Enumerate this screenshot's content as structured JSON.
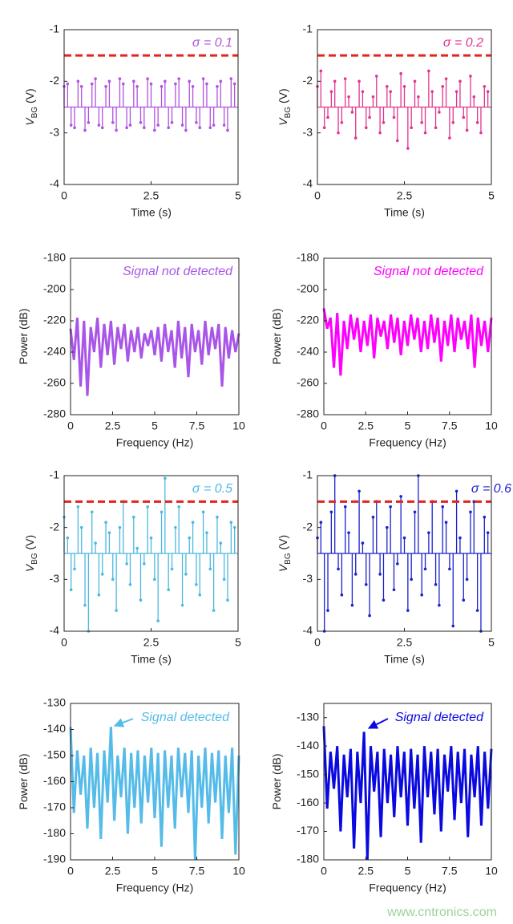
{
  "chart_data": [
    {
      "type": "stem",
      "color": "#b052e0",
      "xlabel": "Time (s)",
      "ylabel": [
        "V",
        "BG",
        " (V)"
      ],
      "annotation": "σ = 0.1",
      "threshold": -1.5,
      "threshold_color": "#e0261f",
      "xlim": [
        0,
        5
      ],
      "xticks": [
        0,
        2.5,
        5
      ],
      "ylim": [
        -4,
        -1
      ],
      "yticks": [
        -1,
        -2,
        -3,
        -4
      ],
      "baseline": -2.5,
      "x": [
        0,
        0.1,
        0.2,
        0.3,
        0.4,
        0.5,
        0.6,
        0.7,
        0.8,
        0.9,
        1,
        1.1,
        1.2,
        1.3,
        1.4,
        1.5,
        1.6,
        1.7,
        1.8,
        1.9,
        2,
        2.1,
        2.2,
        2.3,
        2.4,
        2.5,
        2.6,
        2.7,
        2.8,
        2.9,
        3,
        3.1,
        3.2,
        3.3,
        3.4,
        3.5,
        3.6,
        3.7,
        3.8,
        3.9,
        4,
        4.1,
        4.2,
        4.3,
        4.4,
        4.5,
        4.6,
        4.7,
        4.8,
        4.9
      ],
      "values": [
        -2.1,
        -2.05,
        -2.85,
        -2.9,
        -2.0,
        -2.1,
        -2.95,
        -2.8,
        -2.05,
        -1.95,
        -2.85,
        -2.9,
        -2.1,
        -2.0,
        -2.8,
        -2.95,
        -1.95,
        -2.05,
        -2.9,
        -2.85,
        -2.0,
        -2.1,
        -2.8,
        -2.9,
        -1.95,
        -2.05,
        -2.95,
        -2.85,
        -2.1,
        -2.0,
        -2.9,
        -2.8,
        -2.05,
        -1.95,
        -2.85,
        -2.95,
        -2.0,
        -2.1,
        -2.8,
        -2.9,
        -1.95,
        -2.05,
        -2.9,
        -2.85,
        -2.1,
        -2.0,
        -2.85,
        -2.95,
        -1.95,
        -2.05
      ]
    },
    {
      "type": "stem",
      "color": "#e0358f",
      "xlabel": "Time (s)",
      "ylabel": [
        "V",
        "BG",
        " (V)"
      ],
      "annotation": "σ = 0.2",
      "threshold": -1.5,
      "threshold_color": "#e0261f",
      "xlim": [
        0,
        5
      ],
      "xticks": [
        0,
        2.5,
        5
      ],
      "ylim": [
        -4,
        -1
      ],
      "yticks": [
        -1,
        -2,
        -3,
        -4
      ],
      "baseline": -2.5,
      "x": [
        0,
        0.1,
        0.2,
        0.3,
        0.4,
        0.5,
        0.6,
        0.7,
        0.8,
        0.9,
        1,
        1.1,
        1.2,
        1.3,
        1.4,
        1.5,
        1.6,
        1.7,
        1.8,
        1.9,
        2,
        2.1,
        2.2,
        2.3,
        2.4,
        2.5,
        2.6,
        2.7,
        2.8,
        2.9,
        3,
        3.1,
        3.2,
        3.3,
        3.4,
        3.5,
        3.6,
        3.7,
        3.8,
        3.9,
        4,
        4.1,
        4.2,
        4.3,
        4.4,
        4.5,
        4.6,
        4.7,
        4.8,
        4.9
      ],
      "values": [
        -2.1,
        -1.8,
        -2.9,
        -2.7,
        -2.2,
        -2.0,
        -3.0,
        -2.8,
        -1.95,
        -2.3,
        -2.6,
        -3.1,
        -2.0,
        -2.2,
        -2.9,
        -2.7,
        -2.3,
        -1.9,
        -3.0,
        -2.8,
        -2.1,
        -2.2,
        -2.7,
        -3.15,
        -1.85,
        -2.1,
        -3.3,
        -2.9,
        -2.0,
        -2.3,
        -2.8,
        -3.0,
        -1.8,
        -2.2,
        -2.9,
        -2.6,
        -2.1,
        -1.95,
        -3.1,
        -2.8,
        -2.2,
        -2.0,
        -2.7,
        -2.95,
        -1.9,
        -2.3,
        -2.8,
        -3.0,
        -2.1,
        -2.2
      ]
    },
    {
      "type": "line",
      "color": "#a855e8",
      "xlabel": "Frequency (Hz)",
      "ylabel": [
        "Power (dB)"
      ],
      "annotation": "Signal not detected",
      "xlim": [
        0,
        10
      ],
      "xticks": [
        0,
        2.5,
        5,
        7.5,
        10
      ],
      "ylim": [
        -280,
        -180
      ],
      "yticks": [
        -180,
        -200,
        -220,
        -240,
        -260,
        -280
      ],
      "x": [
        0,
        0.2,
        0.4,
        0.6,
        0.8,
        1,
        1.2,
        1.4,
        1.6,
        1.8,
        2,
        2.2,
        2.4,
        2.6,
        2.8,
        3,
        3.2,
        3.4,
        3.6,
        3.8,
        4,
        4.2,
        4.4,
        4.6,
        4.8,
        5,
        5.2,
        5.4,
        5.6,
        5.8,
        6,
        6.2,
        6.4,
        6.6,
        6.8,
        7,
        7.2,
        7.4,
        7.6,
        7.8,
        8,
        8.2,
        8.4,
        8.6,
        8.8,
        9,
        9.2,
        9.4,
        9.6,
        9.8,
        10
      ],
      "values": [
        -225,
        -245,
        -218,
        -262,
        -220,
        -268,
        -224,
        -240,
        -218,
        -250,
        -222,
        -242,
        -220,
        -248,
        -224,
        -238,
        -222,
        -246,
        -226,
        -240,
        -224,
        -244,
        -228,
        -236,
        -226,
        -242,
        -224,
        -246,
        -222,
        -240,
        -226,
        -250,
        -220,
        -244,
        -224,
        -256,
        -222,
        -240,
        -226,
        -248,
        -220,
        -242,
        -224,
        -238,
        -222,
        -262,
        -224,
        -244,
        -226,
        -240,
        -228
      ]
    },
    {
      "type": "line",
      "color": "#ff00ff",
      "xlabel": "Frequency (Hz)",
      "ylabel": [
        "Power (dB)"
      ],
      "annotation": "Signal not detected",
      "xlim": [
        0,
        10
      ],
      "xticks": [
        0,
        2.5,
        5,
        7.5,
        10
      ],
      "ylim": [
        -280,
        -180
      ],
      "yticks": [
        -180,
        -200,
        -220,
        -240,
        -260,
        -280
      ],
      "x": [
        0,
        0.2,
        0.4,
        0.6,
        0.8,
        1,
        1.2,
        1.4,
        1.6,
        1.8,
        2,
        2.2,
        2.4,
        2.6,
        2.8,
        3,
        3.2,
        3.4,
        3.6,
        3.8,
        4,
        4.2,
        4.4,
        4.6,
        4.8,
        5,
        5.2,
        5.4,
        5.6,
        5.8,
        6,
        6.2,
        6.4,
        6.6,
        6.8,
        7,
        7.2,
        7.4,
        7.6,
        7.8,
        8,
        8.2,
        8.4,
        8.6,
        8.8,
        9,
        9.2,
        9.4,
        9.6,
        9.8,
        10
      ],
      "values": [
        -212,
        -225,
        -218,
        -250,
        -215,
        -255,
        -220,
        -238,
        -216,
        -232,
        -218,
        -240,
        -220,
        -236,
        -216,
        -244,
        -218,
        -230,
        -220,
        -238,
        -216,
        -234,
        -218,
        -242,
        -220,
        -236,
        -216,
        -232,
        -218,
        -240,
        -220,
        -238,
        -216,
        -234,
        -218,
        -246,
        -220,
        -236,
        -216,
        -240,
        -218,
        -232,
        -220,
        -238,
        -216,
        -250,
        -218,
        -236,
        -220,
        -240,
        -218
      ]
    },
    {
      "type": "stem",
      "color": "#4cb8e0",
      "xlabel": "Time (s)",
      "ylabel": [
        "V",
        "BG",
        " (V)"
      ],
      "annotation": "σ = 0.5",
      "threshold": -1.5,
      "threshold_color": "#e0261f",
      "xlim": [
        0,
        5
      ],
      "xticks": [
        0,
        2.5,
        5
      ],
      "ylim": [
        -4,
        -1
      ],
      "yticks": [
        -1,
        -2,
        -3,
        -4
      ],
      "baseline": -2.5,
      "x": [
        0,
        0.1,
        0.2,
        0.3,
        0.4,
        0.5,
        0.6,
        0.7,
        0.8,
        0.9,
        1,
        1.1,
        1.2,
        1.3,
        1.4,
        1.5,
        1.6,
        1.7,
        1.8,
        1.9,
        2,
        2.1,
        2.2,
        2.3,
        2.4,
        2.5,
        2.6,
        2.7,
        2.8,
        2.9,
        3,
        3.1,
        3.2,
        3.3,
        3.4,
        3.5,
        3.6,
        3.7,
        3.8,
        3.9,
        4,
        4.1,
        4.2,
        4.3,
        4.4,
        4.5,
        4.6,
        4.7,
        4.8,
        4.9
      ],
      "values": [
        -1.8,
        -2.2,
        -3.2,
        -2.8,
        -1.6,
        -2.0,
        -3.5,
        -4.0,
        -1.7,
        -2.3,
        -3.3,
        -2.9,
        -1.9,
        -2.1,
        -3.0,
        -3.6,
        -2.0,
        -1.5,
        -2.7,
        -3.1,
        -1.8,
        -2.4,
        -3.4,
        -2.7,
        -1.6,
        -2.2,
        -3.0,
        -3.8,
        -1.7,
        -1.05,
        -3.2,
        -2.8,
        -2.0,
        -1.6,
        -3.5,
        -2.9,
        -2.2,
        -1.9,
        -3.1,
        -3.3,
        -1.7,
        -2.1,
        -2.8,
        -3.6,
        -1.8,
        -2.3,
        -3.0,
        -3.4,
        -1.9,
        -2.0
      ]
    },
    {
      "type": "stem",
      "color": "#1a22cc",
      "xlabel": "Time (s)",
      "ylabel": [
        "V",
        "BG",
        " (V)"
      ],
      "annotation": "σ = 0.6",
      "threshold": -1.5,
      "threshold_color": "#e0261f",
      "xlim": [
        0,
        5
      ],
      "xticks": [
        0,
        2.5,
        5
      ],
      "ylim": [
        -4,
        -1
      ],
      "yticks": [
        -1,
        -2,
        -3,
        -4
      ],
      "baseline": -2.5,
      "x": [
        0,
        0.1,
        0.2,
        0.3,
        0.4,
        0.5,
        0.6,
        0.7,
        0.8,
        0.9,
        1,
        1.1,
        1.2,
        1.3,
        1.4,
        1.5,
        1.6,
        1.7,
        1.8,
        1.9,
        2,
        2.1,
        2.2,
        2.3,
        2.4,
        2.5,
        2.6,
        2.7,
        2.8,
        2.9,
        3,
        3.1,
        3.2,
        3.3,
        3.4,
        3.5,
        3.6,
        3.7,
        3.8,
        3.9,
        4,
        4.1,
        4.2,
        4.3,
        4.4,
        4.5,
        4.6,
        4.7,
        4.8,
        4.9
      ],
      "values": [
        -2.2,
        -1.9,
        -4.0,
        -3.6,
        -1.7,
        -1.0,
        -2.8,
        -3.3,
        -1.6,
        -2.1,
        -3.5,
        -2.9,
        -1.3,
        -2.3,
        -3.1,
        -3.7,
        -1.8,
        -1.5,
        -2.9,
        -3.4,
        -2.0,
        -1.6,
        -3.2,
        -2.7,
        -1.4,
        -2.2,
        -3.6,
        -3.0,
        -1.7,
        -1.0,
        -3.3,
        -2.8,
        -2.1,
        -1.5,
        -3.1,
        -3.5,
        -1.6,
        -1.9,
        -2.8,
        -3.9,
        -1.3,
        -2.2,
        -3.4,
        -3.0,
        -1.7,
        -1.5,
        -3.6,
        -4.0,
        -1.8,
        -2.1
      ]
    },
    {
      "type": "line",
      "color": "#55bbe8",
      "xlabel": "Frequency (Hz)",
      "ylabel": [
        "Power (dB)"
      ],
      "annotation": "Signal detected",
      "xlim": [
        0,
        10
      ],
      "xticks": [
        0,
        2.5,
        5,
        7.5,
        10
      ],
      "ylim": [
        -190,
        -130
      ],
      "yticks": [
        -130,
        -140,
        -150,
        -160,
        -170,
        -180,
        -190
      ],
      "x": [
        0,
        0.2,
        0.4,
        0.6,
        0.8,
        1,
        1.2,
        1.4,
        1.6,
        1.8,
        2,
        2.2,
        2.4,
        2.6,
        2.8,
        3,
        3.2,
        3.4,
        3.6,
        3.8,
        4,
        4.2,
        4.4,
        4.6,
        4.8,
        5,
        5.2,
        5.4,
        5.6,
        5.8,
        6,
        6.2,
        6.4,
        6.6,
        6.8,
        7,
        7.2,
        7.4,
        7.6,
        7.8,
        8,
        8.2,
        8.4,
        8.6,
        8.8,
        9,
        9.2,
        9.4,
        9.6,
        9.8,
        10
      ],
      "values": [
        -139,
        -172,
        -148,
        -165,
        -150,
        -178,
        -147,
        -170,
        -149,
        -182,
        -148,
        -168,
        -139,
        -175,
        -150,
        -166,
        -147,
        -180,
        -149,
        -170,
        -148,
        -176,
        -150,
        -168,
        -147,
        -174,
        -149,
        -185,
        -148,
        -170,
        -150,
        -178,
        -147,
        -166,
        -149,
        -172,
        -148,
        -190,
        -150,
        -170,
        -147,
        -176,
        -149,
        -168,
        -148,
        -182,
        -150,
        -172,
        -147,
        -188,
        -150
      ]
    },
    {
      "type": "line",
      "color": "#0a0ae0",
      "xlabel": "Frequency (Hz)",
      "ylabel": [
        "Power (dB)"
      ],
      "annotation": "Signal detected",
      "xlim": [
        0,
        10
      ],
      "xticks": [
        0,
        2.5,
        5,
        7.5,
        10
      ],
      "ylim": [
        -180,
        -125
      ],
      "yticks": [
        -130,
        -140,
        -150,
        -160,
        -170,
        -180
      ],
      "x": [
        0,
        0.2,
        0.4,
        0.6,
        0.8,
        1,
        1.2,
        1.4,
        1.6,
        1.8,
        2,
        2.2,
        2.4,
        2.6,
        2.8,
        3,
        3.2,
        3.4,
        3.6,
        3.8,
        4,
        4.2,
        4.4,
        4.6,
        4.8,
        5,
        5.2,
        5.4,
        5.6,
        5.8,
        6,
        6.2,
        6.4,
        6.6,
        6.8,
        7,
        7.2,
        7.4,
        7.6,
        7.8,
        8,
        8.2,
        8.4,
        8.6,
        8.8,
        9,
        9.2,
        9.4,
        9.6,
        9.8,
        10
      ],
      "values": [
        -133,
        -162,
        -142,
        -155,
        -140,
        -170,
        -143,
        -158,
        -141,
        -176,
        -142,
        -160,
        -135,
        -180,
        -140,
        -156,
        -142,
        -172,
        -141,
        -160,
        -143,
        -165,
        -140,
        -158,
        -142,
        -168,
        -141,
        -162,
        -143,
        -174,
        -140,
        -158,
        -142,
        -164,
        -141,
        -170,
        -143,
        -156,
        -140,
        -166,
        -142,
        -160,
        -141,
        -172,
        -143,
        -158,
        -140,
        -168,
        -142,
        -162,
        -141
      ]
    }
  ],
  "watermark": "www.cntronics.com"
}
